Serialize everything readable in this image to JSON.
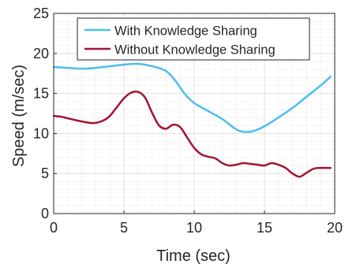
{
  "chart_data": {
    "type": "line",
    "title": "",
    "xlabel": "Time (sec)",
    "ylabel": "Speed (m/sec)",
    "xlim": [
      0,
      20
    ],
    "ylim": [
      0,
      25
    ],
    "xticks": [
      "0",
      "5",
      "10",
      "15",
      "20"
    ],
    "yticks": [
      "0",
      "5",
      "10",
      "15",
      "20",
      "25"
    ],
    "grid": "on (major and minor)",
    "legend_position": "top",
    "series": [
      {
        "name": "With Knowledge Sharing",
        "color": "#4dbeee",
        "points": [
          [
            0,
            18.3
          ],
          [
            1,
            18.2
          ],
          [
            2,
            18.1
          ],
          [
            3,
            18.2
          ],
          [
            4,
            18.4
          ],
          [
            5,
            18.6
          ],
          [
            6,
            18.7
          ],
          [
            7,
            18.4
          ],
          [
            8,
            17.8
          ],
          [
            8.7,
            16.5
          ],
          [
            9.3,
            15.0
          ],
          [
            10,
            13.8
          ],
          [
            11,
            12.8
          ],
          [
            12,
            11.8
          ],
          [
            13,
            10.5
          ],
          [
            13.6,
            10.2
          ],
          [
            14.2,
            10.3
          ],
          [
            15,
            10.9
          ],
          [
            16,
            12.0
          ],
          [
            17,
            13.2
          ],
          [
            18,
            14.6
          ],
          [
            19,
            16.0
          ],
          [
            19.7,
            17.1
          ]
        ]
      },
      {
        "name": "Without Knowledge Sharing",
        "color": "#a2142f",
        "points": [
          [
            0,
            12.2
          ],
          [
            0.5,
            12.1
          ],
          [
            1,
            11.9
          ],
          [
            2,
            11.5
          ],
          [
            2.8,
            11.3
          ],
          [
            3.5,
            11.6
          ],
          [
            4,
            12.2
          ],
          [
            4.5,
            13.3
          ],
          [
            5,
            14.4
          ],
          [
            5.5,
            15.1
          ],
          [
            6,
            15.2
          ],
          [
            6.5,
            14.5
          ],
          [
            7,
            12.6
          ],
          [
            7.5,
            11.0
          ],
          [
            8,
            10.6
          ],
          [
            8.5,
            11.1
          ],
          [
            9,
            10.8
          ],
          [
            9.5,
            9.5
          ],
          [
            10,
            8.2
          ],
          [
            10.5,
            7.4
          ],
          [
            11,
            7.1
          ],
          [
            11.5,
            6.9
          ],
          [
            12,
            6.3
          ],
          [
            12.5,
            6.0
          ],
          [
            13,
            6.1
          ],
          [
            13.5,
            6.3
          ],
          [
            14,
            6.2
          ],
          [
            14.5,
            6.1
          ],
          [
            15,
            6.0
          ],
          [
            15.5,
            6.3
          ],
          [
            16,
            6.1
          ],
          [
            16.5,
            5.7
          ],
          [
            17,
            5.0
          ],
          [
            17.5,
            4.6
          ],
          [
            18,
            5.1
          ],
          [
            18.5,
            5.6
          ],
          [
            19,
            5.7
          ],
          [
            19.7,
            5.7
          ]
        ]
      }
    ]
  }
}
